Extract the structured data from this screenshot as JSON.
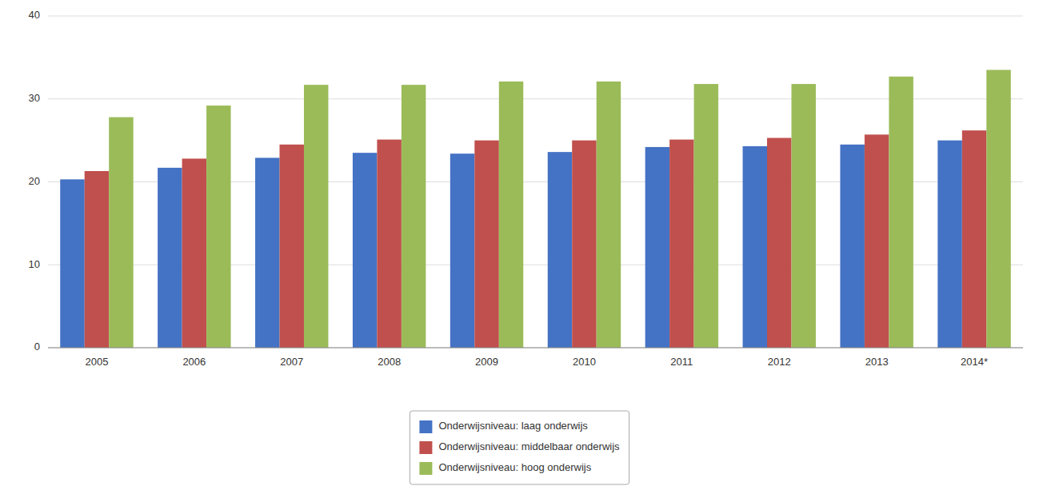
{
  "chart_data": {
    "type": "bar",
    "categories": [
      "2005",
      "2006",
      "2007",
      "2008",
      "2009",
      "2010",
      "2011",
      "2012",
      "2013",
      "2014*"
    ],
    "series": [
      {
        "name": "Onderwijsniveau: laag onderwijs",
        "color": "#4472C4",
        "values": [
          20.3,
          21.7,
          22.9,
          23.5,
          23.4,
          23.6,
          24.2,
          24.3,
          24.5,
          25.0
        ]
      },
      {
        "name": "Onderwijsniveau: middelbaar onderwijs",
        "color": "#C0504D",
        "values": [
          21.3,
          22.8,
          24.5,
          25.1,
          25.0,
          25.0,
          25.1,
          25.3,
          25.7,
          26.2
        ]
      },
      {
        "name": "Onderwijsniveau: hoog onderwijs",
        "color": "#9BBB59",
        "values": [
          27.8,
          29.2,
          31.7,
          31.7,
          32.1,
          32.1,
          31.8,
          31.8,
          32.7,
          33.5
        ]
      }
    ],
    "ylim": [
      0,
      40
    ],
    "yticks": [
      0,
      10,
      20,
      30,
      40
    ],
    "grid": true,
    "legend": "bottom"
  }
}
